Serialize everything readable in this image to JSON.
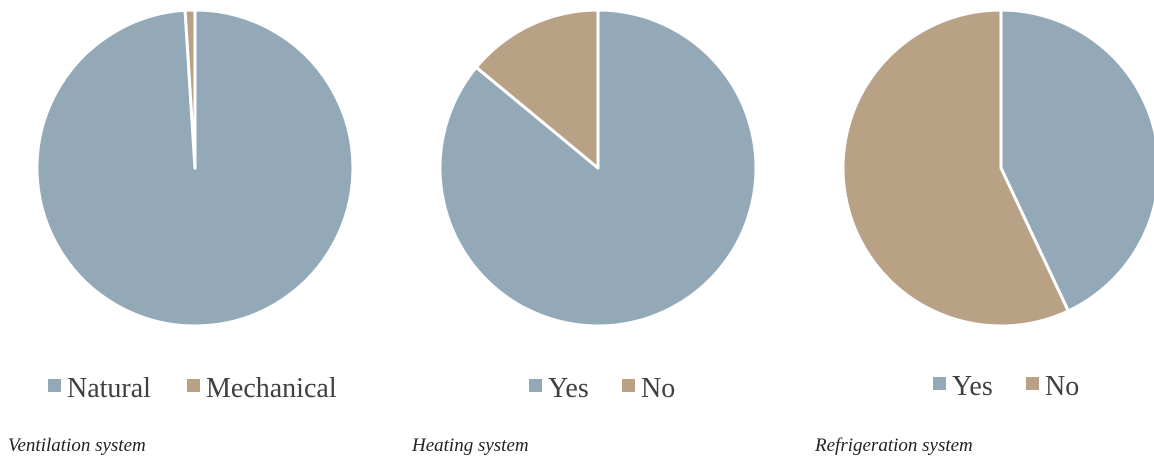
{
  "colors": {
    "blue": "#93A9B8",
    "tan": "#B9A185",
    "separator": "#ffffff"
  },
  "chart_data": [
    {
      "type": "pie",
      "categories": [
        "Natural",
        "Mechanical"
      ],
      "values": [
        99,
        1
      ],
      "colors": [
        "#93A9B8",
        "#B9A185"
      ],
      "start_angle_deg": 0,
      "direction": "clockwise",
      "legend": "bottom",
      "caption": "Ventilation system"
    },
    {
      "type": "pie",
      "categories": [
        "Yes",
        "No"
      ],
      "values": [
        86,
        14
      ],
      "colors": [
        "#93A9B8",
        "#B9A185"
      ],
      "start_angle_deg": 0,
      "direction": "clockwise",
      "legend": "bottom",
      "caption": "Heating system"
    },
    {
      "type": "pie",
      "categories": [
        "Yes",
        "No"
      ],
      "values": [
        43,
        57
      ],
      "colors": [
        "#93A9B8",
        "#B9A185"
      ],
      "start_angle_deg": 0,
      "direction": "clockwise",
      "legend": "bottom",
      "caption": "Refrigeration system"
    }
  ]
}
